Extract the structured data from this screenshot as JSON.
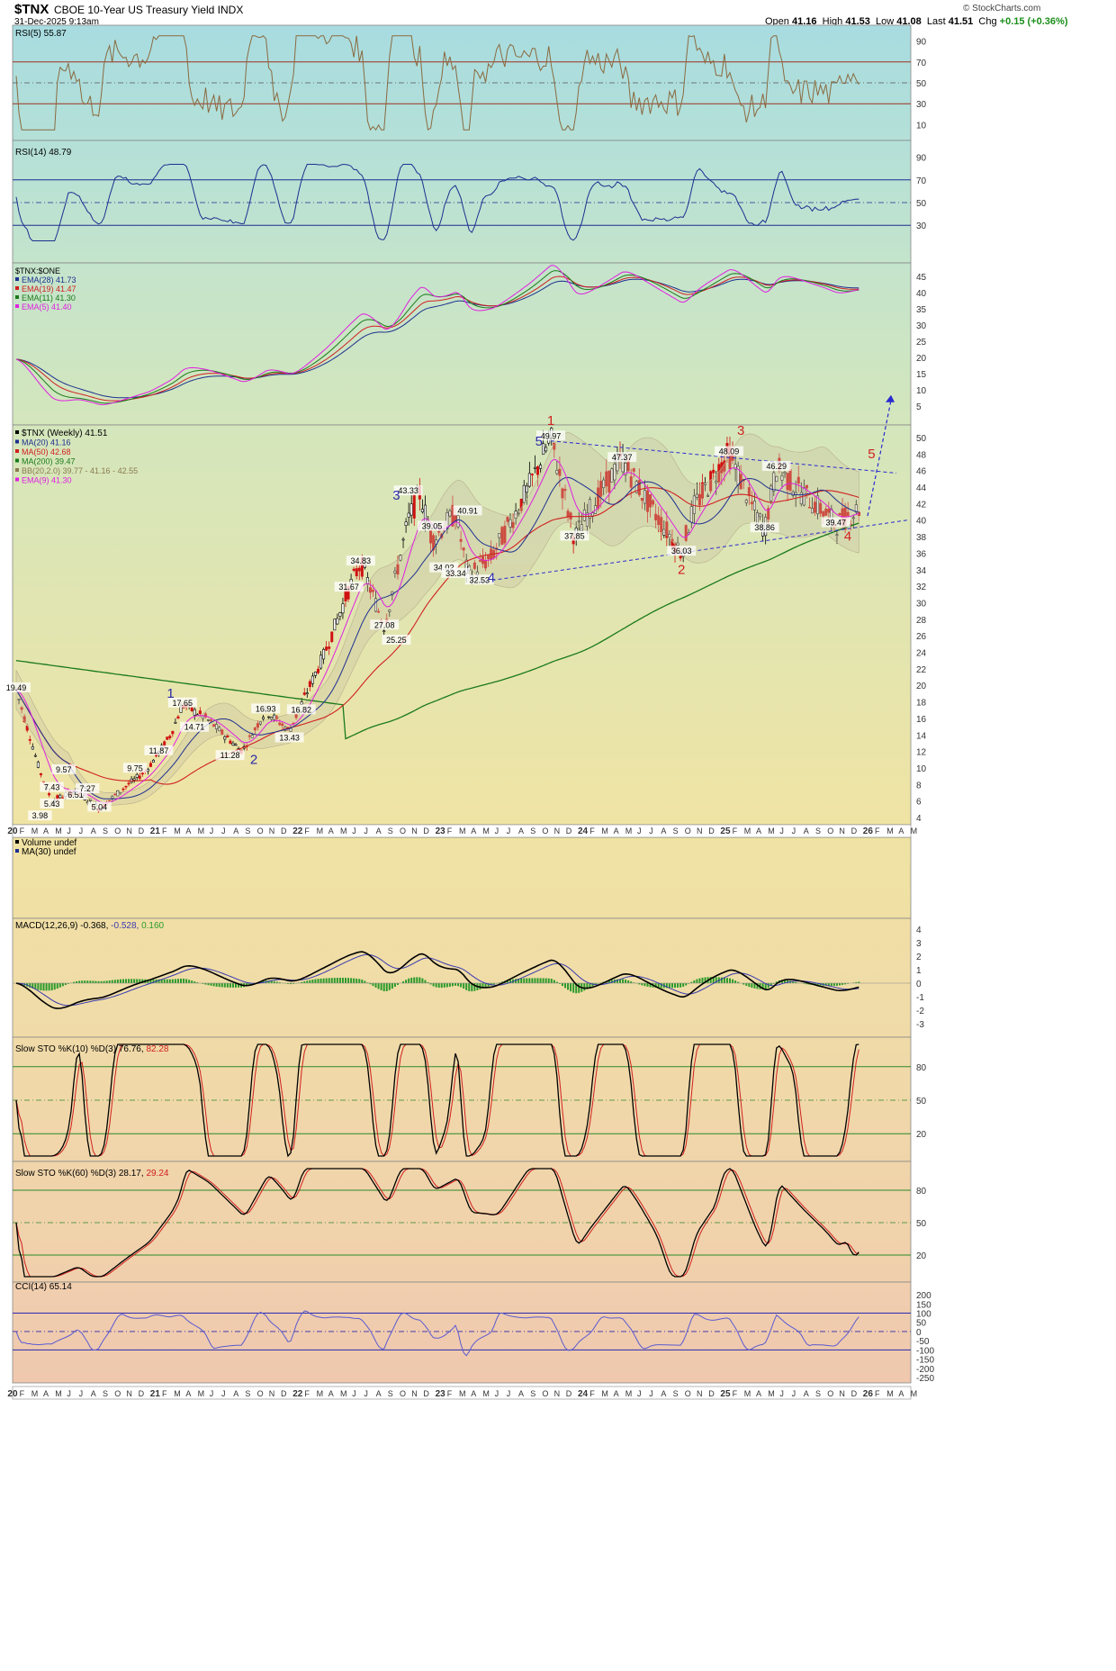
{
  "header": {
    "symbol": "$TNX",
    "name": "CBOE 10-Year US Treasury Yield",
    "exchange": "INDX",
    "datetime": "31-Dec-2025 9:13am",
    "brand": "© StockCharts.com",
    "open_label": "Open",
    "open": "41.16",
    "high_label": "High",
    "high": "41.53",
    "low_label": "Low",
    "low": "41.08",
    "last_label": "Last",
    "last": "41.51",
    "chg_label": "Chg",
    "chg": "+0.15 (+0.36%)",
    "chg_color": "#1a8f1a"
  },
  "x_axis": {
    "labels": [
      "20",
      "F",
      "M",
      "A",
      "M",
      "J",
      "J",
      "A",
      "S",
      "O",
      "N",
      "D",
      "21",
      "F",
      "M",
      "A",
      "M",
      "J",
      "J",
      "A",
      "S",
      "O",
      "N",
      "D",
      "22",
      "F",
      "M",
      "A",
      "M",
      "J",
      "J",
      "A",
      "S",
      "O",
      "N",
      "D",
      "23",
      "F",
      "M",
      "A",
      "M",
      "J",
      "J",
      "A",
      "S",
      "O",
      "N",
      "D",
      "24",
      "F",
      "M",
      "A",
      "M",
      "J",
      "J",
      "A",
      "S",
      "O",
      "N",
      "D",
      "25",
      "F",
      "M",
      "A",
      "M",
      "J",
      "J",
      "A",
      "S",
      "O",
      "N",
      "D",
      "26",
      "F",
      "M",
      "A",
      "M"
    ],
    "year_labels": [
      "20",
      "21",
      "22",
      "23",
      "24",
      "25",
      "26"
    ]
  },
  "panels": {
    "rsi5": {
      "legend": "RSI(5) 55.87",
      "ticks": [
        "90",
        "70",
        "50",
        "30",
        "10"
      ],
      "color": "#8a6a40"
    },
    "rsi14": {
      "legend": "RSI(14) 48.79",
      "ticks": [
        "90",
        "70",
        "50",
        "30"
      ],
      "color": "#1c2f8f"
    },
    "ema": {
      "legend_title": "$TNX:$ONE",
      "legend": [
        {
          "text": "EMA(28) 41.73",
          "color": "#1c2f8f"
        },
        {
          "text": "EMA(19) 41.47",
          "color": "#d02020"
        },
        {
          "text": "EMA(11) 41.30",
          "color": "#1a7a1a"
        },
        {
          "text": "EMA(5) 41.40",
          "color": "#e020e0"
        }
      ],
      "ticks": [
        "45",
        "40",
        "35",
        "30",
        "25",
        "20",
        "15",
        "10",
        "5"
      ]
    },
    "price": {
      "legend": [
        {
          "text": "$TNX (Weekly) 41.51",
          "color": "#000000"
        },
        {
          "text": "MA(20) 41.16",
          "color": "#1c2f8f"
        },
        {
          "text": "MA(50) 42.68",
          "color": "#d02020"
        },
        {
          "text": "MA(200) 39.47",
          "color": "#1a7a1a"
        },
        {
          "text": "BB(20,2.0) 39.77 - 41.16 - 42.55",
          "color": "#8a7a50"
        },
        {
          "text": "EMA(9) 41.30",
          "color": "#e020e0"
        }
      ],
      "ticks": [
        "50",
        "48",
        "46",
        "44",
        "42",
        "40",
        "38",
        "36",
        "34",
        "32",
        "30",
        "28",
        "26",
        "24",
        "22",
        "20",
        "18",
        "16",
        "14",
        "12",
        "10",
        "8",
        "6",
        "4"
      ]
    },
    "volume": {
      "legend": "Volume undef",
      "legend2": "MA(30) undef"
    },
    "macd": {
      "legend_a": "MACD(12,26,9) -0.368,",
      "legend_b": "-0.528,",
      "legend_c": "0.160",
      "ticks": [
        "4",
        "3",
        "2",
        "1",
        "0",
        "-1",
        "-2",
        "-3"
      ]
    },
    "sto10": {
      "legend_a": "Slow STO %K(10) %D(3) 76.76,",
      "legend_b": "82.28",
      "ticks": [
        "80",
        "50",
        "20"
      ]
    },
    "sto60": {
      "legend_a": "Slow STO %K(60) %D(3) 28.17,",
      "legend_b": "29.24",
      "ticks": [
        "80",
        "50",
        "20"
      ]
    },
    "cci": {
      "legend": "CCI(14) 65.14",
      "ticks": [
        "200",
        "150",
        "100",
        "50",
        "0",
        "-50",
        "-100",
        "-150",
        "-200",
        "-250"
      ]
    }
  },
  "chart_data": {
    "type": "line",
    "title": "$TNX CBOE 10-Year US Treasury Yield INDX",
    "x_type": "date",
    "period": "weekly",
    "price_series": {
      "name": "$TNX (Weekly)",
      "x": [
        "2020-01",
        "2020-03",
        "2020-04",
        "2020-06",
        "2020-08",
        "2020-10",
        "2020-12",
        "2021-02",
        "2021-03",
        "2021-05",
        "2021-08",
        "2021-10",
        "2021-12",
        "2022-03",
        "2022-05",
        "2022-06",
        "2022-08",
        "2022-10",
        "2022-11",
        "2022-12",
        "2023-02",
        "2023-03",
        "2023-05",
        "2023-08",
        "2023-10",
        "2023-12",
        "2024-01",
        "2024-04",
        "2024-06",
        "2024-09",
        "2024-10",
        "2025-01",
        "2025-03",
        "2025-04",
        "2025-05",
        "2025-07",
        "2025-09",
        "2025-10",
        "2025-12"
      ],
      "y": [
        19.49,
        9.57,
        6.0,
        7.27,
        5.04,
        7.5,
        9.75,
        14.0,
        17.65,
        16.0,
        12.0,
        16.93,
        14.5,
        24.0,
        31.67,
        34.83,
        27.08,
        40.0,
        43.33,
        37.5,
        40.91,
        33.34,
        35.5,
        43.5,
        49.97,
        37.85,
        40.5,
        47.37,
        42.5,
        36.03,
        41.5,
        48.09,
        41.5,
        38.86,
        46.29,
        43.5,
        41.0,
        39.47,
        41.51
      ]
    },
    "annotations": [
      {
        "text": "19.49",
        "x": "2020-01",
        "y": 19.49
      },
      {
        "text": "3.98",
        "x": "2020-03",
        "y": 3.98
      },
      {
        "text": "5.43",
        "x": "2020-04",
        "y": 5.43
      },
      {
        "text": "7.43",
        "x": "2020-04",
        "y": 7.43
      },
      {
        "text": "9.57",
        "x": "2020-05",
        "y": 9.57
      },
      {
        "text": "6.51",
        "x": "2020-06",
        "y": 6.51
      },
      {
        "text": "7.27",
        "x": "2020-07",
        "y": 7.27
      },
      {
        "text": "5.04",
        "x": "2020-08",
        "y": 5.04
      },
      {
        "text": "9.75",
        "x": "2020-11",
        "y": 9.75
      },
      {
        "text": "11.87",
        "x": "2021-01",
        "y": 11.87
      },
      {
        "text": "17.65",
        "x": "2021-03",
        "y": 17.65
      },
      {
        "text": "14.71",
        "x": "2021-04",
        "y": 14.71
      },
      {
        "text": "11.28",
        "x": "2021-07",
        "y": 11.28
      },
      {
        "text": "16.93",
        "x": "2021-10",
        "y": 16.93
      },
      {
        "text": "13.43",
        "x": "2021-12",
        "y": 13.43
      },
      {
        "text": "16.82",
        "x": "2022-01",
        "y": 16.82
      },
      {
        "text": "31.67",
        "x": "2022-05",
        "y": 31.67
      },
      {
        "text": "34.83",
        "x": "2022-06",
        "y": 34.83
      },
      {
        "text": "27.08",
        "x": "2022-08",
        "y": 27.08
      },
      {
        "text": "25.25",
        "x": "2022-09",
        "y": 25.25
      },
      {
        "text": "43.33",
        "x": "2022-10",
        "y": 43.33
      },
      {
        "text": "39.05",
        "x": "2022-12",
        "y": 39.05
      },
      {
        "text": "34.02",
        "x": "2023-01",
        "y": 34.02
      },
      {
        "text": "33.34",
        "x": "2023-02",
        "y": 33.34
      },
      {
        "text": "40.91",
        "x": "2023-03",
        "y": 40.91
      },
      {
        "text": "32.53",
        "x": "2023-04",
        "y": 32.53
      },
      {
        "text": "49.97",
        "x": "2023-10",
        "y": 49.97
      },
      {
        "text": "37.85",
        "x": "2023-12",
        "y": 37.85
      },
      {
        "text": "47.37",
        "x": "2024-04",
        "y": 47.37
      },
      {
        "text": "36.03",
        "x": "2024-09",
        "y": 36.03
      },
      {
        "text": "48.09",
        "x": "2025-01",
        "y": 48.09
      },
      {
        "text": "38.86",
        "x": "2025-04",
        "y": 38.86
      },
      {
        "text": "46.29",
        "x": "2025-05",
        "y": 46.29
      },
      {
        "text": "39.47",
        "x": "2025-10",
        "y": 39.47
      }
    ],
    "wave_labels": [
      {
        "text": "1",
        "color": "#2a2aa8",
        "x": "2021-02",
        "y": 18.5
      },
      {
        "text": "2",
        "color": "#2a2aa8",
        "x": "2021-09",
        "y": 10.5
      },
      {
        "text": "3",
        "color": "#2a2aa8",
        "x": "2022-09",
        "y": 42.5
      },
      {
        "text": "4",
        "color": "#2a2aa8",
        "x": "2023-05",
        "y": 32.5
      },
      {
        "text": "5",
        "color": "#2a2aa8",
        "x": "2023-09",
        "y": 49.0
      },
      {
        "text": "1",
        "color": "#d02020",
        "x": "2023-10",
        "y": 51.5
      },
      {
        "text": "2",
        "color": "#d02020",
        "x": "2024-09",
        "y": 33.5
      },
      {
        "text": "3",
        "color": "#d02020",
        "x": "2025-02",
        "y": 50.3
      },
      {
        "text": "4",
        "color": "#d02020",
        "x": "2025-11",
        "y": 37.5
      },
      {
        "text": "5",
        "color": "#d02020",
        "x": "2026-01",
        "y": 47.5
      }
    ],
    "ylim": [
      4,
      50
    ],
    "legend_position": "top-left",
    "grid": false
  }
}
